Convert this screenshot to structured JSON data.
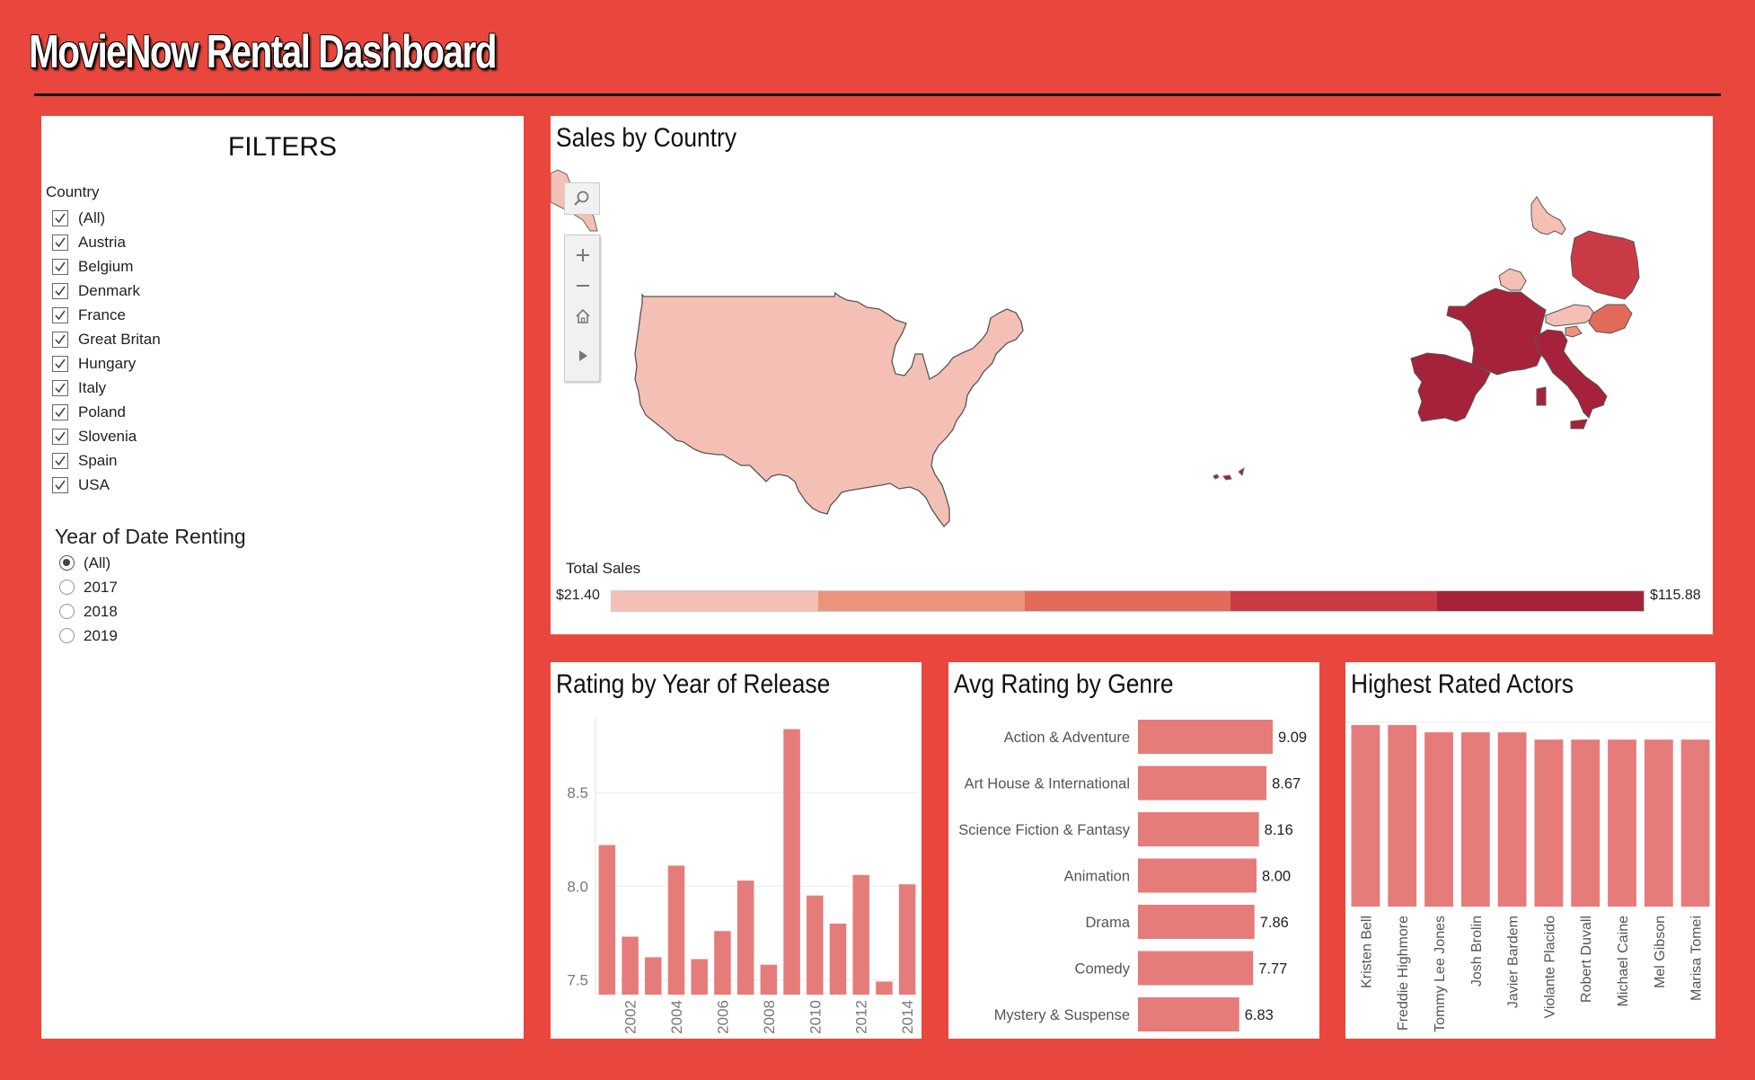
{
  "dashboard": {
    "title": "MovieNow Rental Dashboard"
  },
  "colors": {
    "background": "#e9473d",
    "bar": "#e57c7a",
    "legend": [
      "#f4c0b5",
      "#ec937c",
      "#e26a5b",
      "#c93a45",
      "#a5223a"
    ]
  },
  "filters": {
    "heading": "FILTERS",
    "country": {
      "label": "Country",
      "options": [
        {
          "label": "(All)",
          "checked": true
        },
        {
          "label": "Austria",
          "checked": true
        },
        {
          "label": "Belgium",
          "checked": true
        },
        {
          "label": "Denmark",
          "checked": true
        },
        {
          "label": "France",
          "checked": true
        },
        {
          "label": "Great Britan",
          "checked": true
        },
        {
          "label": "Hungary",
          "checked": true
        },
        {
          "label": "Italy",
          "checked": true
        },
        {
          "label": "Poland",
          "checked": true
        },
        {
          "label": "Slovenia",
          "checked": true
        },
        {
          "label": "Spain",
          "checked": true
        },
        {
          "label": "USA",
          "checked": true
        }
      ]
    },
    "year": {
      "label": "Year of Date Renting",
      "options": [
        {
          "label": "(All)",
          "selected": true
        },
        {
          "label": "2017",
          "selected": false
        },
        {
          "label": "2018",
          "selected": false
        },
        {
          "label": "2019",
          "selected": false
        }
      ]
    }
  },
  "map": {
    "title": "Sales by Country",
    "icons": [
      "search-icon",
      "plus-icon",
      "minus-icon",
      "home-icon",
      "play-icon"
    ],
    "legend": {
      "title": "Total Sales",
      "min": "$21.40",
      "max": "$115.88"
    }
  },
  "chart_data": [
    {
      "type": "bar",
      "title": "Rating by Year of Release",
      "x": [
        2001,
        2002,
        2003,
        2004,
        2005,
        2006,
        2007,
        2008,
        2009,
        2010,
        2011,
        2012,
        2013,
        2014
      ],
      "tick_labels": [
        "2002",
        "2004",
        "2006",
        "2008",
        "2010",
        "2012",
        "2014"
      ],
      "values": [
        8.22,
        7.73,
        7.62,
        8.11,
        7.61,
        7.76,
        8.03,
        7.58,
        8.84,
        7.95,
        7.8,
        8.06,
        7.49,
        8.01
      ],
      "yticks": [
        "7.5",
        "8.0",
        "8.5"
      ],
      "ylim": [
        7.42,
        8.9
      ]
    },
    {
      "type": "bar",
      "orientation": "horizontal",
      "title": "Avg Rating by Genre",
      "categories": [
        "Action & Adventure",
        "Art House & International",
        "Science Fiction & Fantasy",
        "Animation",
        "Drama",
        "Comedy",
        "Mystery & Suspense"
      ],
      "values": [
        9.09,
        8.67,
        8.16,
        8.0,
        7.86,
        7.77,
        6.83
      ],
      "data_labels": [
        "9.09",
        "8.67",
        "8.16",
        "8.00",
        "7.86",
        "7.77",
        "6.83"
      ]
    },
    {
      "type": "bar",
      "title": "Highest Rated Actors",
      "categories": [
        "Kristen Bell",
        "Freddie Highmore",
        "Tommy Lee Jones",
        "Josh Brolin",
        "Javier Bardem",
        "Violante Placido",
        "Robert Duvall",
        "Michael Caine",
        "Mel Gibson",
        "Marisa Tomei"
      ],
      "values": [
        10.0,
        10.0,
        9.6,
        9.6,
        9.6,
        9.2,
        9.2,
        9.2,
        9.2,
        9.2
      ]
    }
  ]
}
